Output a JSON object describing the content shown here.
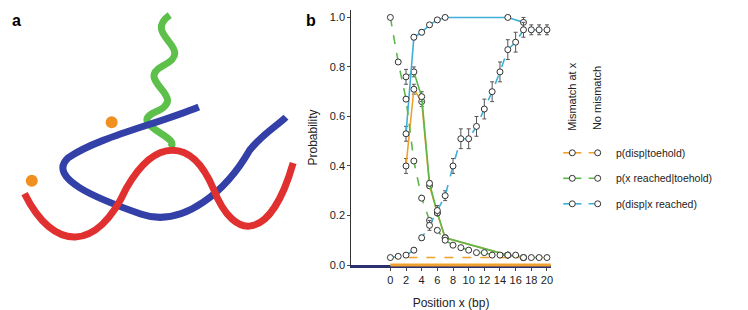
{
  "panel_labels": [
    "a",
    "b"
  ],
  "chart_data": {
    "type": "line",
    "x_label": "Position x (bp)",
    "y_label": "Probability",
    "xlim": [
      -5,
      20.5
    ],
    "xticks": [
      0,
      2,
      4,
      6,
      8,
      10,
      12,
      14,
      16,
      18,
      20
    ],
    "ylim": [
      0,
      1.03
    ],
    "yticks": [
      {
        "value": 0,
        "label": "0.0"
      },
      0.2,
      0.4,
      0.6,
      0.8,
      {
        "value": 1,
        "label": "1.0"
      }
    ],
    "grid": false,
    "legend": "right",
    "annotations": [
      "Mismatch at x",
      "No mismatch"
    ],
    "series": [
      {
        "name": "p(disp|toehold)",
        "color": "#f0a030",
        "line_style": "solid",
        "marker": "circle",
        "x": [
          2,
          3,
          4,
          5,
          6,
          7,
          15,
          17
        ],
        "values": [
          0.4,
          0.71,
          0.66,
          0.32,
          0.21,
          0.11,
          0.04,
          0.03
        ],
        "errors": [
          0.03,
          0.02,
          0.02,
          0.01,
          0.01,
          0.01,
          0.005,
          0.005
        ]
      },
      {
        "name": "p(x reached|toehold)",
        "color": "#5cb84a",
        "line_style": "solid",
        "marker": "circle",
        "x": [
          2,
          3,
          4,
          5,
          6,
          7,
          15,
          17
        ],
        "values": [
          0.76,
          0.78,
          0.68,
          0.33,
          0.21,
          0.11,
          0.04,
          0.03
        ],
        "errors": [
          0.03,
          0.02,
          0.02,
          0.01,
          0.01,
          0.01,
          0.005,
          0.005
        ]
      },
      {
        "name": "p(disp|x reached)",
        "color": "#3eb0d8",
        "line_style": "solid",
        "marker": "circle",
        "x": [
          2,
          3,
          4,
          5,
          6,
          7,
          15,
          17
        ],
        "values": [
          0.53,
          0.92,
          0.94,
          0.97,
          0.99,
          1.0,
          1.0,
          0.98
        ],
        "errors": [
          0.03,
          0.01,
          0.01,
          0.005,
          0.005,
          0.005,
          0.005,
          0.02
        ]
      },
      {
        "name": "p(disp|toehold)",
        "color": "#f0a030",
        "line_style": "dash",
        "marker": "none",
        "x": [
          0,
          1,
          2,
          3,
          4,
          5,
          6,
          7,
          8,
          9,
          10,
          11,
          12,
          13,
          14,
          15,
          16,
          17,
          18,
          19,
          20
        ],
        "values": [
          0.03,
          0.03,
          0.03,
          0.03,
          0.03,
          0.03,
          0.03,
          0.03,
          0.03,
          0.03,
          0.03,
          0.03,
          0.03,
          0.03,
          0.03,
          0.03,
          0.03,
          0.03,
          0.03,
          0.03,
          0.03
        ]
      },
      {
        "name": "p(x reached|toehold)",
        "color": "#5cb84a",
        "line_style": "dash",
        "marker": "circle",
        "x": [
          0,
          1,
          2,
          3,
          4,
          5,
          6,
          7,
          8,
          9,
          10,
          11,
          12,
          13,
          14,
          15,
          16,
          17,
          18,
          19,
          20
        ],
        "values": [
          1.0,
          0.82,
          0.67,
          0.42,
          0.27,
          0.18,
          0.14,
          0.1,
          0.08,
          0.07,
          0.06,
          0.05,
          0.05,
          0.04,
          0.04,
          0.04,
          0.04,
          0.03,
          0.03,
          0.03,
          0.03
        ]
      },
      {
        "name": "p(disp|x reached)",
        "color": "#3eb0d8",
        "line_style": "dash",
        "marker": "circle",
        "x": [
          0,
          1,
          2,
          3,
          4,
          5,
          6,
          7,
          8,
          9,
          10,
          11,
          12,
          13,
          14,
          15,
          16,
          17,
          18,
          19,
          20
        ],
        "values": [
          0.03,
          0.035,
          0.04,
          0.06,
          0.11,
          0.16,
          0.22,
          0.28,
          0.4,
          0.51,
          0.51,
          0.56,
          0.63,
          0.7,
          0.78,
          0.87,
          0.9,
          0.95,
          0.95,
          0.95,
          0.95
        ],
        "errors": [
          0.005,
          0.005,
          0.005,
          0.01,
          0.01,
          0.02,
          0.02,
          0.02,
          0.03,
          0.04,
          0.04,
          0.04,
          0.04,
          0.04,
          0.04,
          0.04,
          0.04,
          0.03,
          0.02,
          0.02,
          0.02
        ]
      }
    ]
  }
}
